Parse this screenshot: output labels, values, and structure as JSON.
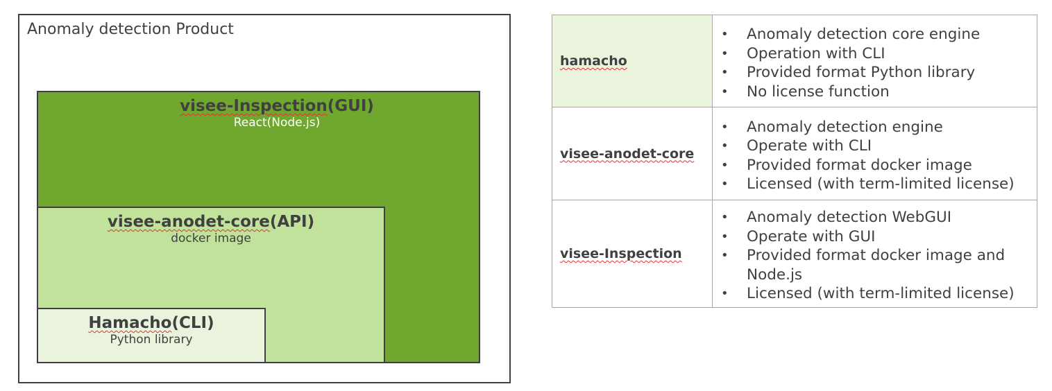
{
  "diagram": {
    "title": "Anomaly detection Product",
    "layers": [
      {
        "title_name": "visee-Inspection",
        "title_suffix": "(GUI)",
        "subtitle": "React(Node.js)",
        "color": "#70a82f"
      },
      {
        "title_name": "visee-anodet-core",
        "title_suffix": "(API)",
        "subtitle": "docker image",
        "color": "#c1e29a"
      },
      {
        "title_name": "Hamacho",
        "title_suffix": "(CLI)",
        "subtitle": "Python library",
        "color": "#eaf4dd"
      }
    ]
  },
  "table": {
    "rows": [
      {
        "name": "hamacho",
        "items": [
          "Anomaly detection core engine",
          "Operation with CLI",
          "Provided format Python library",
          "No license function"
        ]
      },
      {
        "name": "visee-anodet-core",
        "items": [
          "Anomaly detection engine",
          "Operate with CLI",
          "Provided format docker image",
          "Licensed (with term-limited license)"
        ]
      },
      {
        "name": "visee-Inspection",
        "items": [
          "Anomaly detection WebGUI",
          "Operate with GUI",
          "Provided format docker image and",
          "Node.js",
          "Licensed (with term-limited license)"
        ]
      }
    ]
  }
}
